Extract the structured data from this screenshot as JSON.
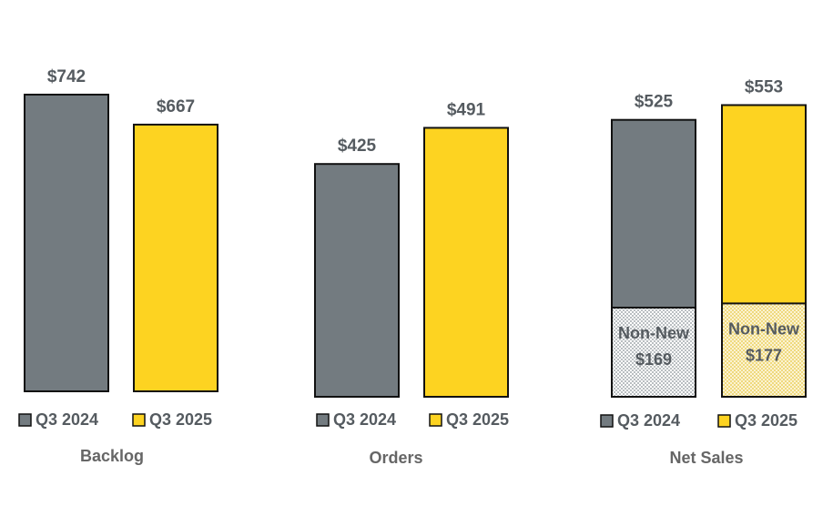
{
  "colors": {
    "q3_2024": "#737b80",
    "q3_2025": "#fdd321",
    "outline": "#111111",
    "label_text": "#555b60",
    "title_text": "#666666",
    "nonnew_2024_pattern": "#cfd3d5",
    "nonnew_2025_pattern": "#f6e7a8"
  },
  "legend": {
    "q3_2024": "Q3 2024",
    "q3_2025": "Q3 2025"
  },
  "chart_data": [
    {
      "type": "bar",
      "title": "Backlog",
      "categories": [
        "Q3 2024",
        "Q3 2025"
      ],
      "values": [
        742,
        667
      ],
      "value_labels": [
        "$742",
        "$667"
      ]
    },
    {
      "type": "bar",
      "title": "Orders",
      "categories": [
        "Q3 2024",
        "Q3 2025"
      ],
      "values": [
        425,
        491
      ],
      "value_labels": [
        "$425",
        "$491"
      ]
    },
    {
      "type": "bar",
      "title": "Net Sales",
      "categories": [
        "Q3 2024",
        "Q3 2025"
      ],
      "values": [
        525,
        553
      ],
      "value_labels": [
        "$525",
        "$553"
      ],
      "stacked_segment": {
        "name": "Non-New",
        "values": [
          169,
          177
        ],
        "value_labels": [
          "$169",
          "$177"
        ]
      }
    }
  ]
}
